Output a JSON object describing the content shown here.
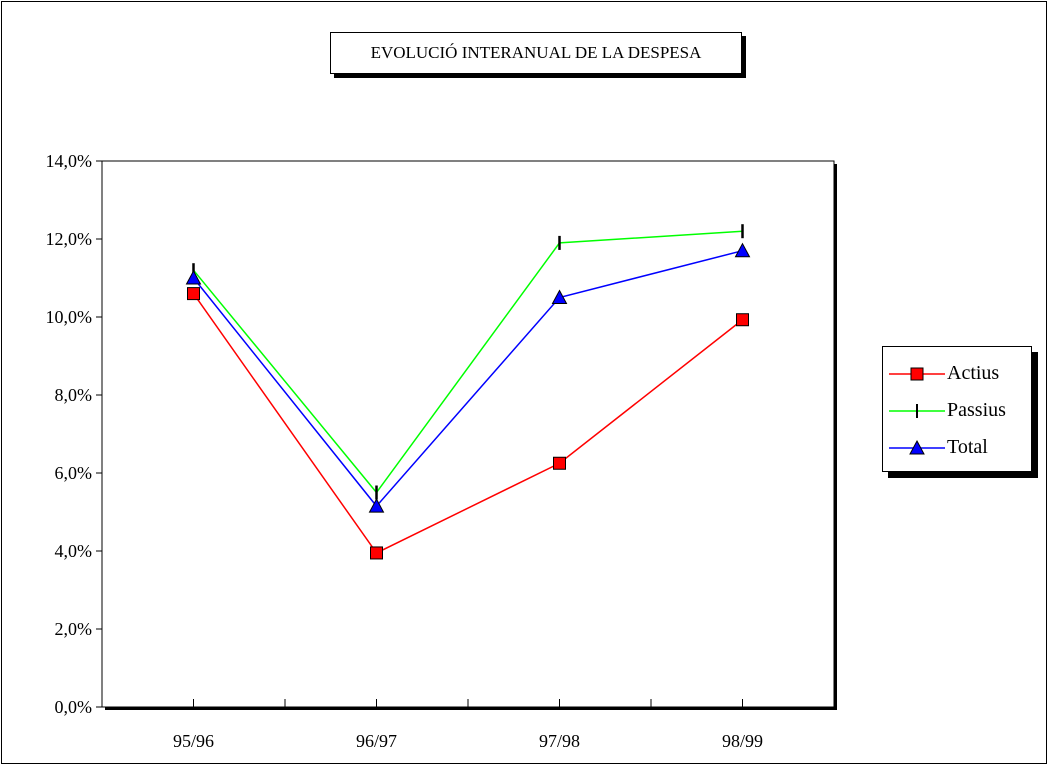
{
  "chart_data": {
    "type": "line",
    "title": "EVOLUCIÓ INTERANUAL DE LA DESPESA",
    "categories": [
      "95/96",
      "96/97",
      "97/98",
      "98/99"
    ],
    "ylim": [
      0,
      14
    ],
    "yticks": [
      0,
      2,
      4,
      6,
      8,
      10,
      12,
      14
    ],
    "ytick_labels": [
      "0,0%",
      "2,0%",
      "4,0%",
      "6,0%",
      "8,0%",
      "10,0%",
      "12,0%",
      "14,0%"
    ],
    "grid": false,
    "legend_position": "right",
    "series": [
      {
        "name": "Actius",
        "values": [
          10.6,
          3.95,
          6.25,
          9.93
        ],
        "color": "#ff0000",
        "marker": "square",
        "marker_color": "#ff0000"
      },
      {
        "name": "Passius",
        "values": [
          11.2,
          5.5,
          11.9,
          12.2
        ],
        "color": "#00ff00",
        "marker": "tick",
        "marker_color": "#000000"
      },
      {
        "name": "Total",
        "values": [
          11.0,
          5.15,
          10.5,
          11.7
        ],
        "color": "#0000ff",
        "marker": "triangle",
        "marker_color": "#0000ff"
      }
    ]
  }
}
